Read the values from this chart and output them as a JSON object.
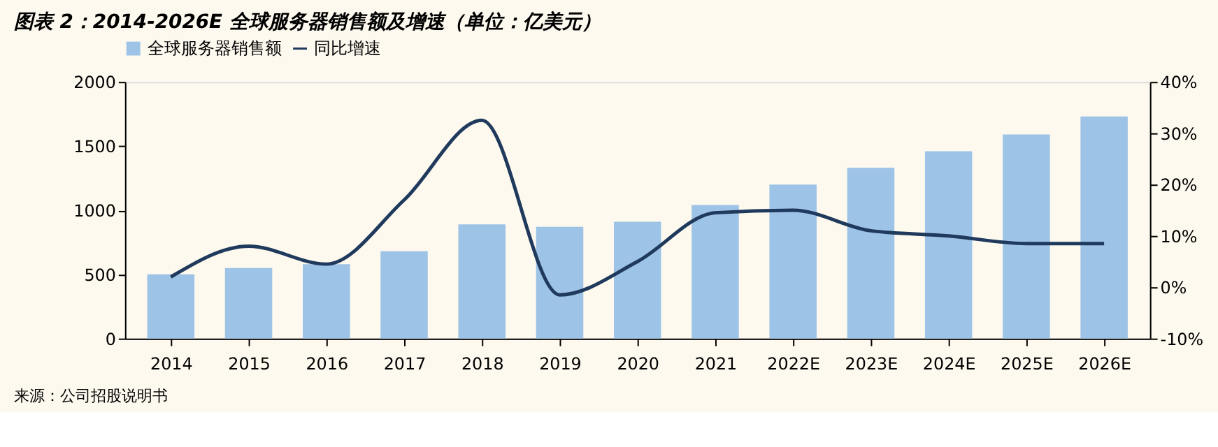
{
  "chart_data": {
    "type": "bar",
    "title": "图表 2：2014-2026E 全球服务器销售额及增速（单位：亿美元）",
    "categories": [
      "2014",
      "2015",
      "2016",
      "2017",
      "2018",
      "2019",
      "2020",
      "2021",
      "2022E",
      "2023E",
      "2024E",
      "2025E",
      "2026E"
    ],
    "series": [
      {
        "name": "全球服务器销售额",
        "color": "#9dc3e6",
        "values": [
          500,
          550,
          580,
          680,
          890,
          870,
          910,
          1040,
          1200,
          1330,
          1460,
          1590,
          1730
        ]
      },
      {
        "name": "同比增速",
        "type": "line",
        "axis": "y2",
        "color": "#1f3a5c",
        "values": [
          2,
          8,
          4.5,
          17,
          32.5,
          -1.5,
          5,
          14.5,
          15,
          11,
          10,
          8.5,
          8.5
        ]
      }
    ],
    "ylim": [
      0,
      2000
    ],
    "yticks": [
      0,
      500,
      1000,
      1500,
      2000
    ],
    "y2lim": [
      -10,
      40
    ],
    "y2ticks": [
      {
        "value": -10,
        "label": "-10%"
      },
      {
        "value": 0,
        "label": "0%"
      },
      {
        "value": 10,
        "label": "10%"
      },
      {
        "value": 20,
        "label": "20%"
      },
      {
        "value": 30,
        "label": "30%"
      },
      {
        "value": 40,
        "label": "40%"
      }
    ],
    "legend": "top",
    "grid": false,
    "marker": "none",
    "line_style": "solid",
    "annotations": [
      "来源：公司招股说明书"
    ]
  }
}
